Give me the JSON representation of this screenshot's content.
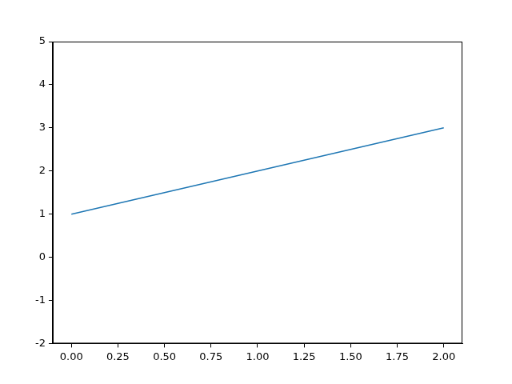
{
  "chart_data": {
    "type": "line",
    "x": [
      0,
      1,
      2
    ],
    "values": [
      1,
      2,
      3
    ],
    "color": "#1f77b4",
    "xlim": [
      -0.1,
      2.1
    ],
    "xticks": [
      {
        "value": 0,
        "label": "0.00"
      },
      0.25,
      {
        "value": 0.5,
        "label": "0.50"
      },
      0.75,
      {
        "value": 1,
        "label": "1.00"
      },
      1.25,
      {
        "value": 1.5,
        "label": "1.50"
      },
      1.75,
      {
        "value": 2,
        "label": "2.00"
      }
    ],
    "ylim": [
      -2,
      5
    ],
    "yticks": [
      -2,
      -1,
      0,
      1,
      2,
      3,
      4,
      5
    ],
    "grid": false
  }
}
